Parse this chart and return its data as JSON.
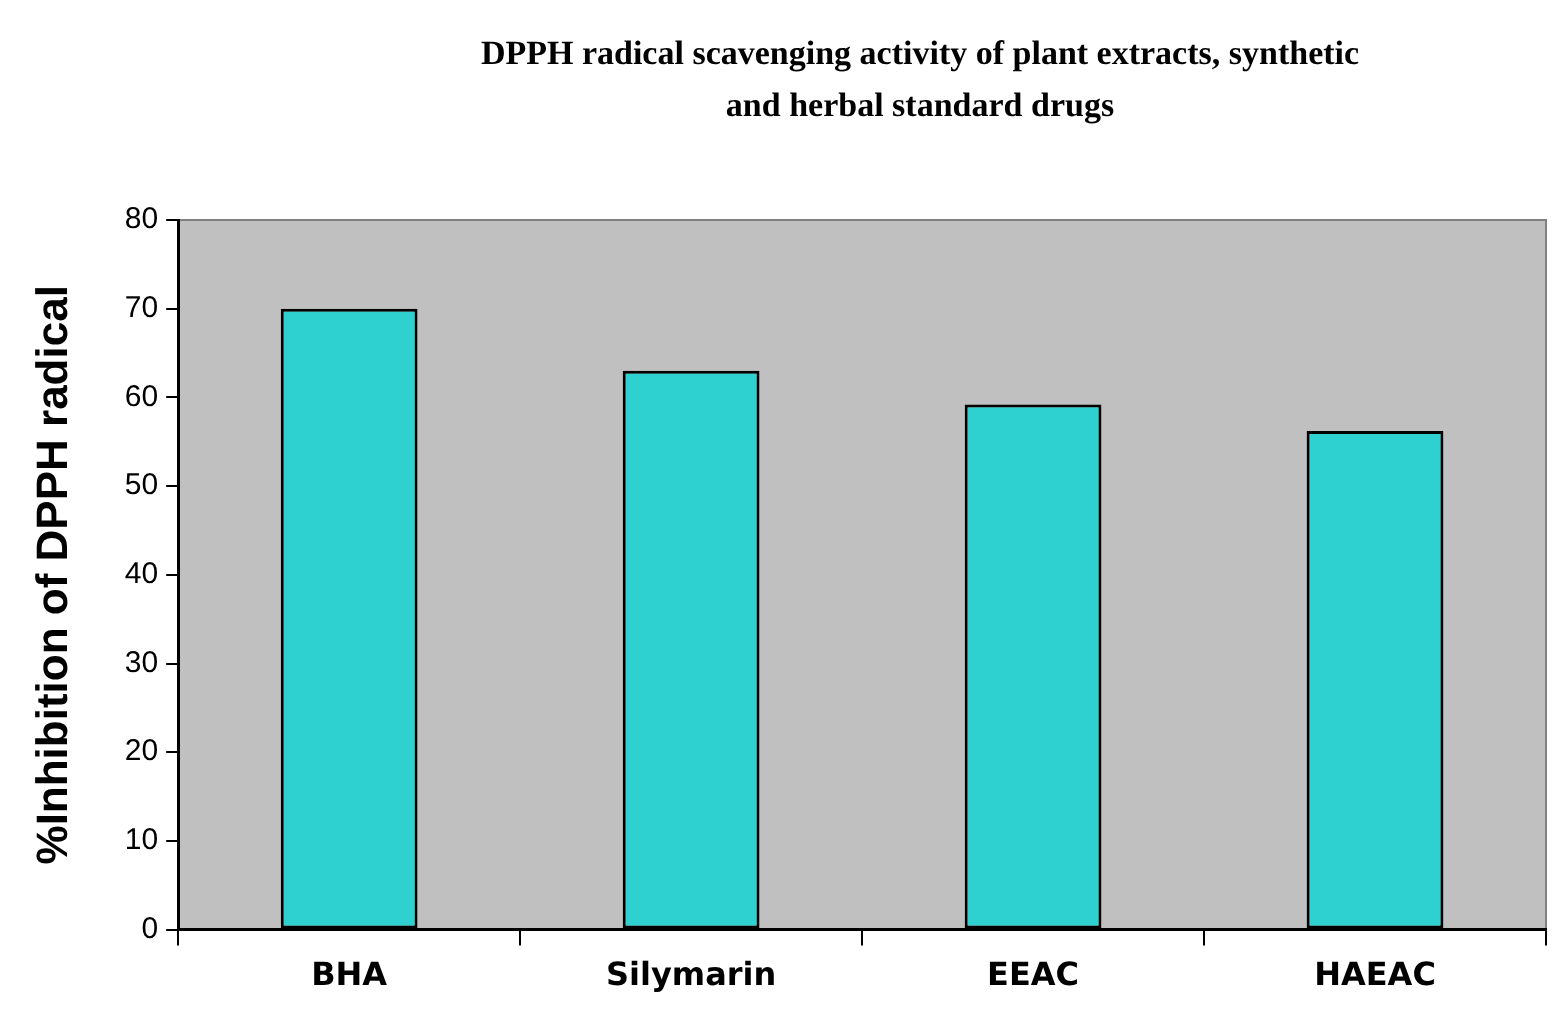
{
  "chart_data": {
    "type": "bar",
    "title": "DPPH radical scavenging activity of plant extracts, synthetic and herbal standard drugs",
    "ylabel": "%Inhibition of DPPH radical",
    "categories": [
      "BHA",
      "Silymarin",
      "EEAC",
      "HAEAC"
    ],
    "values": [
      70,
      63,
      59.2,
      56.2
    ],
    "color": "#2ed0d0",
    "ylim": [
      0,
      80
    ],
    "yticks": [
      0,
      10,
      20,
      30,
      40,
      50,
      60,
      70,
      80
    ],
    "grid": false,
    "legend": false
  }
}
